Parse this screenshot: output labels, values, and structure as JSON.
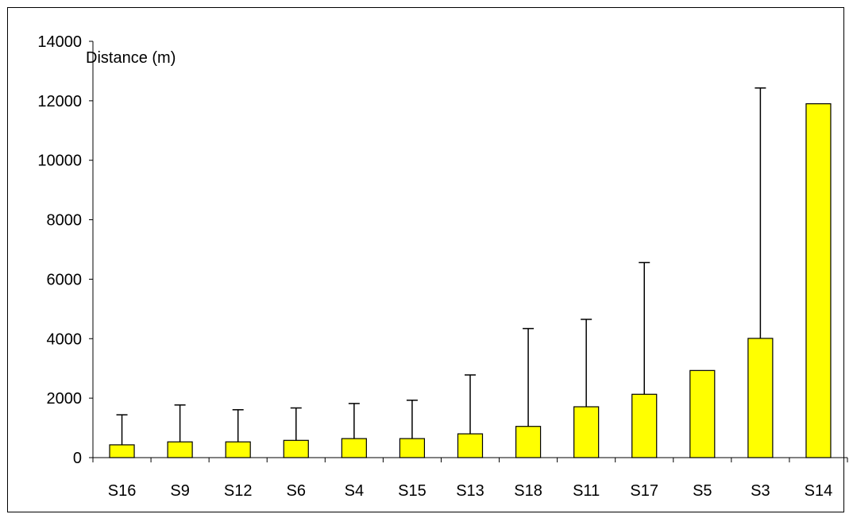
{
  "chart_data": {
    "type": "bar",
    "title": "",
    "xlabel": "",
    "ylabel": "Distance  (m)",
    "ylim": [
      0,
      14000
    ],
    "yticks": [
      0,
      2000,
      4000,
      6000,
      8000,
      10000,
      12000,
      14000
    ],
    "grid": false,
    "legend": "none",
    "categories": [
      "S16",
      "S9",
      "S12",
      "S6",
      "S4",
      "S15",
      "S13",
      "S18",
      "S11",
      "S17",
      "S5",
      "S3",
      "S14"
    ],
    "values": [
      430,
      530,
      530,
      580,
      640,
      640,
      800,
      1050,
      1710,
      2130,
      2930,
      4010,
      11900
    ],
    "error_upper": [
      1440,
      1770,
      1610,
      1670,
      1820,
      1930,
      2780,
      4340,
      4650,
      6560,
      null,
      12430,
      null
    ],
    "colors": {
      "bar_fill": "#FFFF00",
      "bar_stroke": "#000000",
      "axis": "#000000"
    }
  }
}
